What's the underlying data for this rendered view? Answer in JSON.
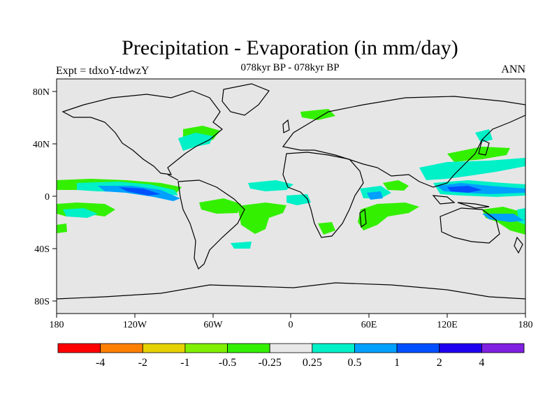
{
  "title": "Precipitation - Evaporation (in mm/day)",
  "subtitle": "078kyr BP - 078kyr BP",
  "left_label": "Expt = tdxoY-tdwzY",
  "right_label": "ANN",
  "x_ticks": [
    "180",
    "120W",
    "60W",
    "0",
    "60E",
    "120E",
    "180"
  ],
  "y_ticks": [
    "80N",
    "40N",
    "0",
    "40S",
    "80S"
  ],
  "colorbar": {
    "colors": [
      "#ff0000",
      "#ff8000",
      "#e6d200",
      "#80f000",
      "#33f000",
      "#e8e8e8",
      "#00f0c8",
      "#00a0ff",
      "#0050ff",
      "#2000f0",
      "#8020e0"
    ],
    "labels": [
      "-4",
      "-2",
      "-1",
      "-0.5",
      "-0.25",
      "0.25",
      "0.5",
      "1",
      "2",
      "4"
    ]
  },
  "map": {
    "background": "#e6e6e6",
    "projection": "equirectangular",
    "lon_range": [
      -180,
      180
    ],
    "lat_range": [
      -90,
      90
    ]
  }
}
